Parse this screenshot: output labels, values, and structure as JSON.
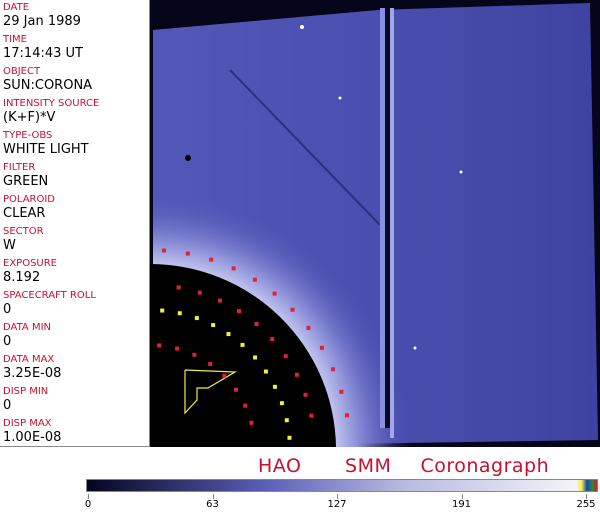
{
  "metadata": [
    {
      "label": "DATE",
      "value": "29 Jan 1989"
    },
    {
      "label": "TIME",
      "value": "17:14:43 UT"
    },
    {
      "label": "OBJECT",
      "value": "SUN:CORONA"
    },
    {
      "label": "INTENSITY SOURCE",
      "value": "(K+F)*V"
    },
    {
      "label": "TYPE-OBS",
      "value": "WHITE LIGHT"
    },
    {
      "label": "FILTER",
      "value": "GREEN"
    },
    {
      "label": "POLAROID",
      "value": "CLEAR"
    },
    {
      "label": "SECTOR",
      "value": "W"
    },
    {
      "label": "EXPOSURE",
      "value": "8.192"
    },
    {
      "label": "SPACECRAFT ROLL",
      "value": "0"
    },
    {
      "label": "DATA MIN",
      "value": "0"
    },
    {
      "label": "DATA MAX",
      "value": "3.25E-08"
    },
    {
      "label": "DISP MIN",
      "value": "0"
    },
    {
      "label": "DISP MAX",
      "value": "1.00E-08"
    }
  ],
  "title": "HAO   SMM  Coronagraph",
  "colorbar": {
    "ticks": [
      "0",
      "63",
      "127",
      "191",
      "255"
    ],
    "colors": {
      "low": "#05051f",
      "mid": "#5a5fb8",
      "high": "#f4f4f8"
    }
  },
  "colors": {
    "label": "#c8102e",
    "marker_red": "#e0213a",
    "marker_yellow": "#f2f03a",
    "field": "#4b4fb0"
  }
}
